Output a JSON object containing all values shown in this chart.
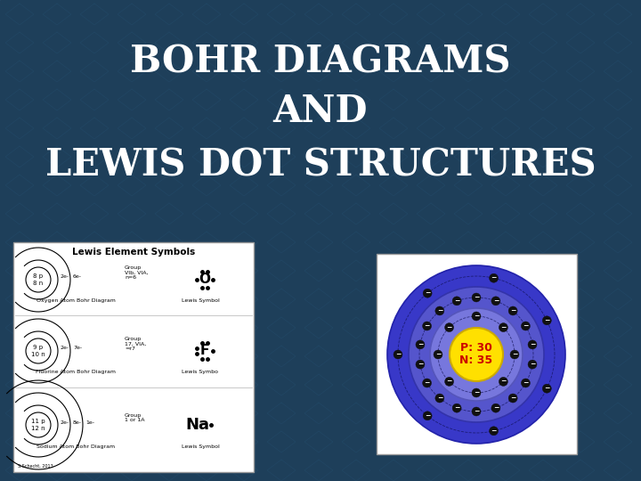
{
  "title_line1": "BOHR DIAGRAMS",
  "title_line2": "AND",
  "title_line3": "LEWIS DOT STRUCTURES",
  "title_color": "#FFFFFF",
  "title_fontsize": 30,
  "bg_color": "#1e3f5a",
  "left_panel_bg": "#FFFFFF",
  "left_panel_title": "Lewis Element Symbols",
  "nucleus_text_p": "P: 30",
  "nucleus_text_n": "N: 35",
  "nucleus_text_color": "#CC0000",
  "electrons_shell2": 8,
  "electrons_shell3": 18,
  "electrons_shell4": 7
}
